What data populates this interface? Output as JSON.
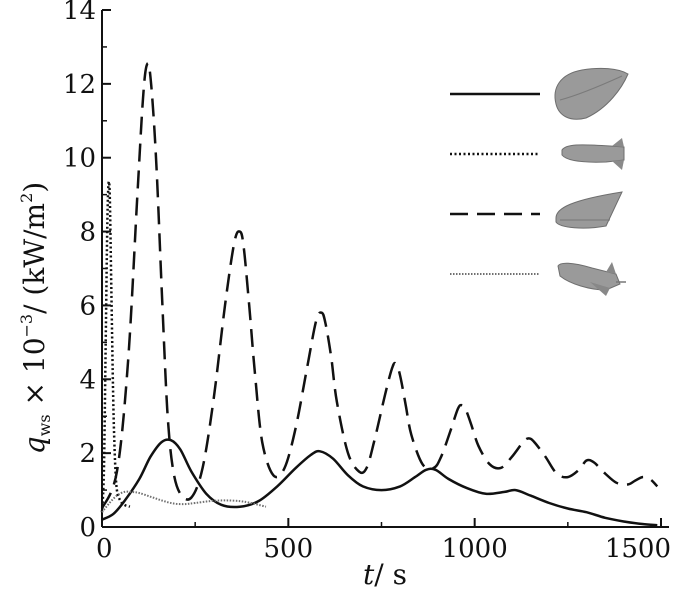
{
  "chart_data": {
    "type": "line",
    "title": "",
    "xlabel": {
      "main": "t",
      "unit": "/ s"
    },
    "ylabel": {
      "symbol": "q",
      "subscript": "ws",
      "rest": " × 10",
      "exp": "−3",
      "unit": "/ (kW/m",
      "unit_exp": "2",
      "close": ")"
    },
    "xlim": [
      0,
      1500
    ],
    "ylim": [
      0,
      14
    ],
    "xticks": [
      0,
      500,
      1000,
      1500
    ],
    "yticks": [
      0,
      2,
      4,
      6,
      8,
      10,
      12,
      14
    ],
    "x_tick_labels": [
      "0",
      "500",
      "1000",
      "1500"
    ],
    "y_tick_labels": [
      "0",
      "2",
      "4",
      "6",
      "8",
      "10",
      "12",
      "14"
    ],
    "grid": false,
    "legend": {
      "placement": "top-right",
      "entries": [
        "lifting-body icon",
        "blunt-nose vehicle icon",
        "capsule icon",
        "space shuttle icon"
      ]
    },
    "series": [
      {
        "style": "solid",
        "icon": "lifting-body-icon",
        "x": [
          0,
          30,
          60,
          100,
          130,
          160,
          185,
          210,
          240,
          280,
          320,
          370,
          420,
          470,
          520,
          560,
          585,
          620,
          660,
          700,
          750,
          800,
          840,
          870,
          895,
          930,
          980,
          1030,
          1080,
          1110,
          1150,
          1200,
          1250,
          1300,
          1350,
          1400,
          1450,
          1490
        ],
        "y": [
          0.2,
          0.35,
          0.7,
          1.3,
          1.9,
          2.3,
          2.35,
          2.1,
          1.5,
          0.9,
          0.6,
          0.55,
          0.7,
          1.1,
          1.6,
          1.95,
          2.05,
          1.85,
          1.4,
          1.1,
          1.0,
          1.1,
          1.35,
          1.55,
          1.55,
          1.3,
          1.05,
          0.9,
          0.95,
          1.0,
          0.85,
          0.65,
          0.5,
          0.4,
          0.25,
          0.15,
          0.08,
          0.05
        ]
      },
      {
        "style": "dotted",
        "icon": "blunt-nose-vehicle-icon",
        "x": [
          0,
          5,
          10,
          15,
          20,
          25,
          30,
          35,
          40,
          50,
          60,
          75
        ],
        "y": [
          0.4,
          1.5,
          5.0,
          8.6,
          9.2,
          6.5,
          3.5,
          1.8,
          1.0,
          0.7,
          0.6,
          0.55
        ]
      },
      {
        "style": "dashed",
        "icon": "capsule-icon",
        "x": [
          0,
          40,
          70,
          95,
          110,
          120,
          130,
          145,
          160,
          175,
          190,
          210,
          240,
          270,
          300,
          330,
          355,
          370,
          380,
          395,
          410,
          430,
          460,
          490,
          520,
          550,
          575,
          590,
          600,
          615,
          630,
          660,
          690,
          710,
          730,
          760,
          780,
          790,
          800,
          815,
          830,
          860,
          890,
          910,
          935,
          955,
          965,
          975,
          990,
          1010,
          1040,
          1070,
          1100,
          1130,
          1145,
          1160,
          1190,
          1220,
          1250,
          1280,
          1300,
          1320,
          1350,
          1380,
          1410,
          1430,
          1450,
          1470,
          1490
        ],
        "y": [
          0.5,
          1.5,
          4.5,
          9.0,
          11.6,
          12.5,
          12.2,
          10.0,
          6.5,
          3.2,
          1.6,
          0.9,
          0.8,
          1.6,
          3.5,
          6.0,
          7.7,
          8.0,
          7.6,
          6.0,
          4.2,
          2.3,
          1.4,
          1.6,
          2.7,
          4.3,
          5.6,
          5.8,
          5.5,
          4.6,
          3.4,
          2.0,
          1.5,
          1.6,
          2.3,
          3.6,
          4.35,
          4.4,
          4.1,
          3.3,
          2.5,
          1.7,
          1.6,
          1.9,
          2.6,
          3.2,
          3.3,
          3.2,
          2.8,
          2.2,
          1.7,
          1.6,
          1.9,
          2.3,
          2.4,
          2.3,
          1.9,
          1.45,
          1.35,
          1.55,
          1.8,
          1.75,
          1.45,
          1.2,
          1.15,
          1.25,
          1.35,
          1.3,
          1.1
        ]
      },
      {
        "style": "dotted-thin",
        "icon": "space-shuttle-icon",
        "x": [
          0,
          20,
          40,
          60,
          80,
          100,
          130,
          160,
          190,
          220,
          250,
          290,
          330,
          370,
          400,
          420,
          440
        ],
        "y": [
          0.4,
          0.65,
          0.85,
          0.95,
          0.95,
          0.92,
          0.82,
          0.72,
          0.64,
          0.62,
          0.65,
          0.7,
          0.72,
          0.7,
          0.65,
          0.6,
          0.55
        ]
      }
    ],
    "colors": {
      "line": "#111111",
      "shuttle_line": "#707070",
      "icon_fill": "#9a9a9a",
      "icon_dark": "#6e6e6e"
    }
  }
}
